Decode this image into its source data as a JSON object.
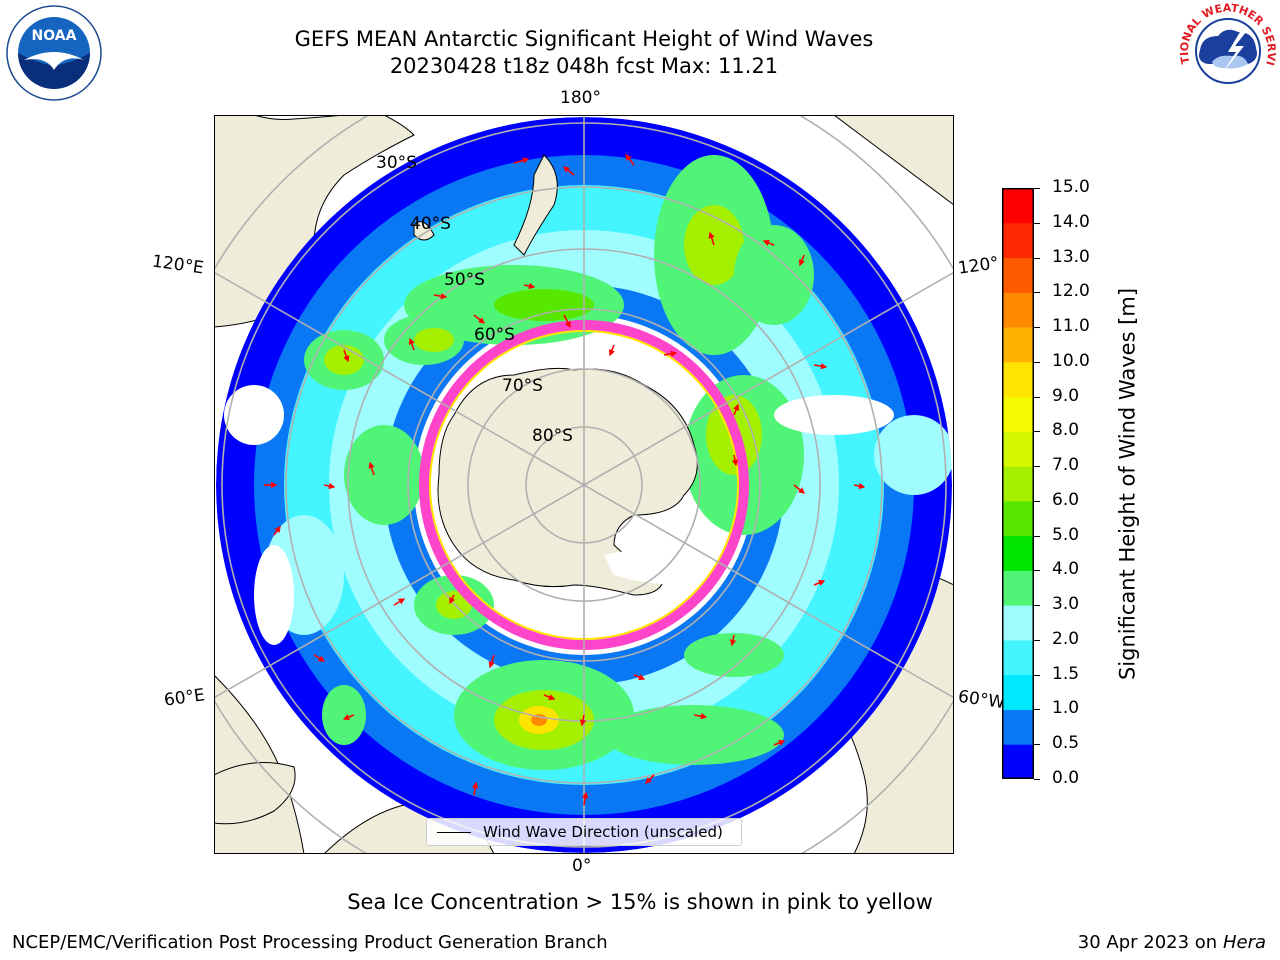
{
  "title": {
    "line1": "GEFS MEAN Antarctic Significant Height of Wind Waves",
    "line2": "20230428 t18z 048h fcst   Max: 11.21"
  },
  "map": {
    "longitude_labels": {
      "lon_180": "180°",
      "lon_0": "0°",
      "lon_120e": "120°E",
      "lon_60e": "60°E",
      "lon_120w": "120°",
      "lon_60w": "60°W"
    },
    "latitude_labels": [
      "30°S",
      "40°S",
      "50°S",
      "60°S",
      "70°S",
      "80°S"
    ],
    "colors": {
      "land": "#efedda",
      "ice_edge": "#ff44cc",
      "arrows": "#ff0000",
      "grid": "#b0b0b0"
    }
  },
  "colorbar": {
    "label": "Significant Height of Wind Waves [m]",
    "ticks": [
      "0.0",
      "0.5",
      "1.0",
      "1.5",
      "2.0",
      "3.0",
      "4.0",
      "5.0",
      "6.0",
      "7.0",
      "8.0",
      "9.0",
      "10.0",
      "11.0",
      "12.0",
      "13.0",
      "14.0",
      "15.0"
    ],
    "colors": [
      "#0000ff",
      "#0a78f5",
      "#00e8ff",
      "#44f4ff",
      "#9ffcff",
      "#50f578",
      "#00e600",
      "#58e800",
      "#a4f000",
      "#d4f800",
      "#f5fa00",
      "#ffe400",
      "#ffb200",
      "#ff8a00",
      "#ff5a00",
      "#ff2800",
      "#ff0000"
    ]
  },
  "legend": {
    "label": "Wind Wave Direction (unscaled)"
  },
  "caption": "Sea Ice Concentration > 15% is shown in pink to yellow",
  "footer": {
    "left": "NCEP/EMC/Verification Post Processing Product Generation Branch",
    "date": "30 Apr 2023 on",
    "system": "Hera"
  },
  "logos": {
    "noaa_text": "NOAA",
    "nws_text": "NATIONAL WEATHER SERVICE"
  }
}
